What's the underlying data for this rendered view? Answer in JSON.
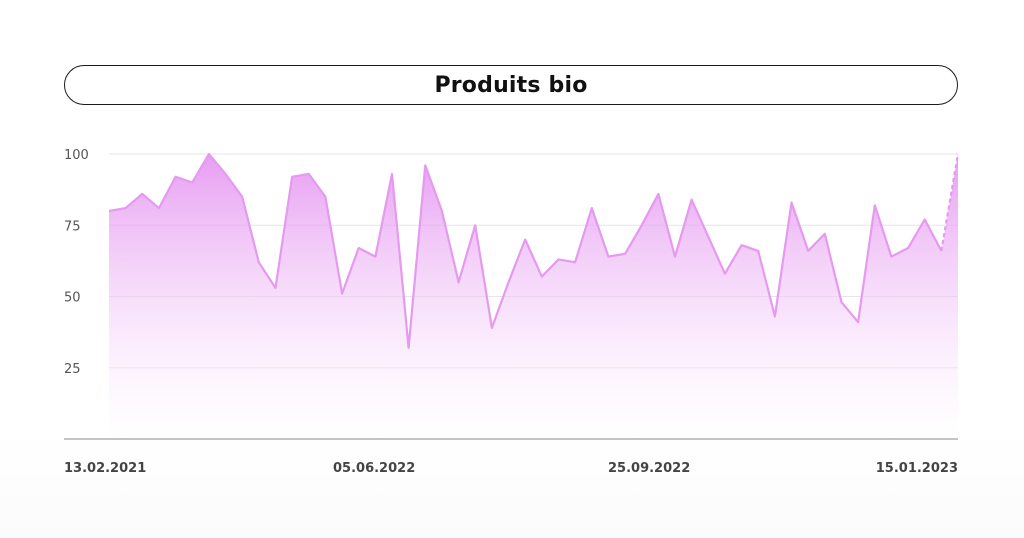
{
  "title": "Produits bio",
  "chart_data": {
    "type": "area",
    "title": "Produits bio",
    "xlabel": "",
    "ylabel": "",
    "ylim": [
      0,
      100
    ],
    "y_ticks": [
      25,
      50,
      75,
      100
    ],
    "x_tick_labels": [
      "13.02.2021",
      "05.06.2022",
      "25.09.2022",
      "15.01.2023"
    ],
    "grid": "horizontal",
    "colors": {
      "line": "#e59af0",
      "fill_top": "#e38cf0",
      "fill_bottom": "#ffffff",
      "grid": "#e6e6e6",
      "axis": "#888888"
    },
    "series": [
      {
        "values": [
          80,
          81,
          86,
          81,
          92,
          90,
          100,
          93,
          85,
          62,
          53,
          92,
          93,
          85,
          51,
          67,
          64,
          93,
          32,
          96,
          80,
          55,
          75,
          39,
          55,
          70,
          57,
          63,
          62,
          81,
          64,
          65,
          75,
          86,
          64,
          84,
          71,
          58,
          68,
          66,
          43,
          83,
          66,
          72,
          48,
          41,
          82,
          64,
          67,
          77,
          66,
          100
        ],
        "dashed_last_segment": true
      }
    ]
  }
}
